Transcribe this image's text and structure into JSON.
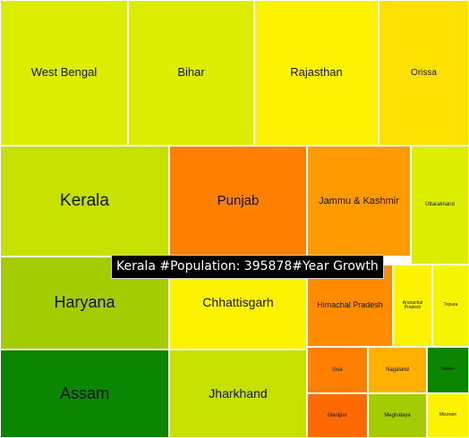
{
  "chart_data": {
    "type": "treemap",
    "size_measure": "Population",
    "color_measure": "Year Growth",
    "cells": [
      {
        "label": "West Bengal",
        "color": "#dcee00"
      },
      {
        "label": "Bihar",
        "color": "#dcee00"
      },
      {
        "label": "Rajasthan",
        "color": "#fdf200"
      },
      {
        "label": "Orissa",
        "color": "#ffe100"
      },
      {
        "label": "Kerala",
        "color": "#c6e000"
      },
      {
        "label": "Punjab",
        "color": "#ff8000"
      },
      {
        "label": "Jammu & Kashmir",
        "color": "#ff9b00"
      },
      {
        "label": "Uttarakhand",
        "color": "#dcee00"
      },
      {
        "label": "Haryana",
        "color": "#a3cd00"
      },
      {
        "label": "Chhattisgarh",
        "color": "#fdf200"
      },
      {
        "label": "Himachal Pradesh",
        "color": "#ff8c00"
      },
      {
        "label": "Arunachal Pradesh",
        "color": "#fdf200"
      },
      {
        "label": "Tripura",
        "color": "#f5f500"
      },
      {
        "label": "Assam",
        "color": "#0a8600"
      },
      {
        "label": "Jharkhand",
        "color": "#c6e000"
      },
      {
        "label": "Goa",
        "color": "#ff8000"
      },
      {
        "label": "Nagaland",
        "color": "#ffb000"
      },
      {
        "label": "Sikkim",
        "color": "#0a8600"
      },
      {
        "label": "Manipur",
        "color": "#ff6a00"
      },
      {
        "label": "Meghalaya",
        "color": "#a3cd00"
      },
      {
        "label": "Mizoram",
        "color": "#fdf200"
      }
    ]
  },
  "tooltip": {
    "text": "Kerala #Population: 395878#Year Growth"
  }
}
